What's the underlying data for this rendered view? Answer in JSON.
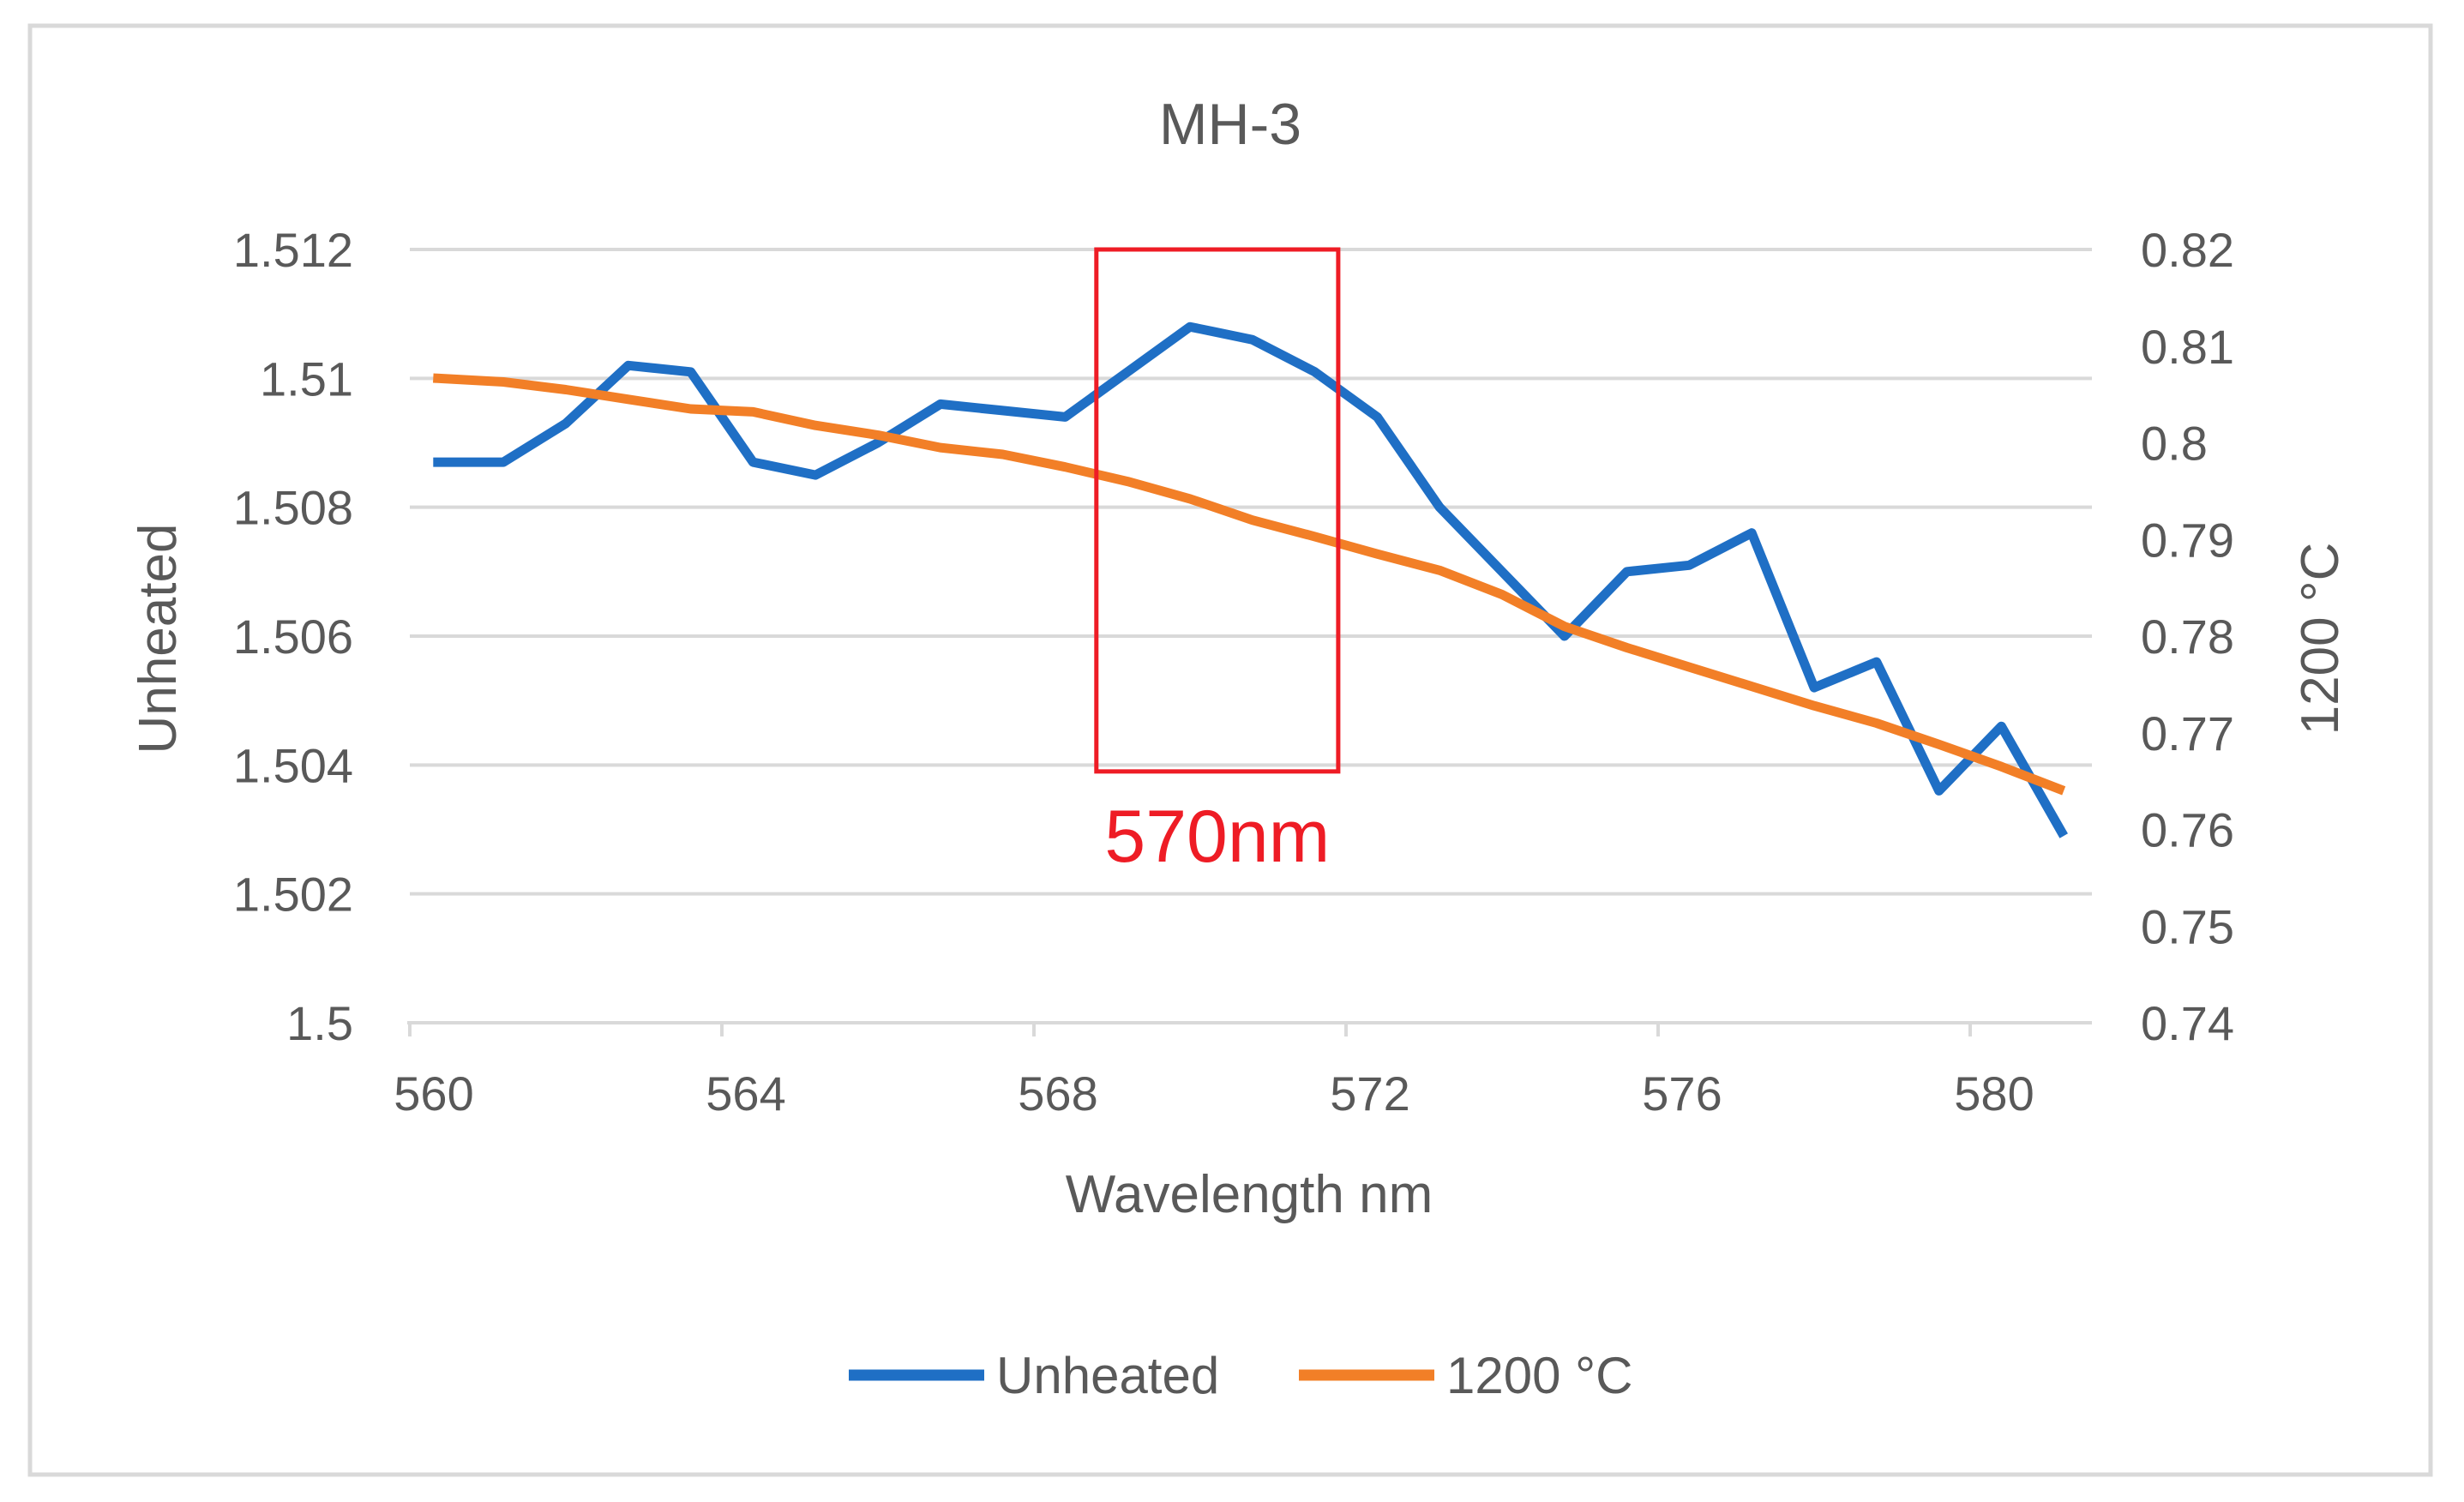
{
  "chart_data": {
    "type": "line",
    "title": "MH-3",
    "xlabel": "Wavelength nm",
    "ylabel_left": "Unheated",
    "ylabel_right": "1200 °C",
    "xlim": [
      560,
      581
    ],
    "xticks": [
      560,
      564,
      568,
      572,
      576,
      580
    ],
    "xtick_labels": [
      "560",
      "564",
      "568",
      "572",
      "576",
      "580"
    ],
    "ylim_left": [
      1.5,
      1.512
    ],
    "yticks_left": [
      1.5,
      1.502,
      1.504,
      1.506,
      1.508,
      1.51,
      1.512
    ],
    "ytick_labels_left": [
      "1.5",
      "1.502",
      "1.504",
      "1.506",
      "1.508",
      "1.51",
      "1.512"
    ],
    "ylim_right": [
      0.74,
      0.82
    ],
    "yticks_right": [
      0.74,
      0.75,
      0.76,
      0.77,
      0.78,
      0.79,
      0.8,
      0.81,
      0.82
    ],
    "ytick_labels_right": [
      "0.74",
      "0.75",
      "0.76",
      "0.77",
      "0.78",
      "0.79",
      "0.8",
      "0.81",
      "0.82"
    ],
    "grid": true,
    "legend_position": "bottom",
    "series": [
      {
        "name": "Unheated",
        "axis": "left",
        "color": "#1f6fc5",
        "x": [
          560.3,
          561.2,
          562.0,
          562.8,
          563.6,
          564.4,
          565.2,
          566.0,
          566.8,
          567.6,
          568.4,
          569.2,
          570.0,
          570.8,
          571.6,
          572.4,
          573.2,
          574.0,
          574.8,
          575.6,
          576.4,
          577.2,
          578.0,
          578.8,
          579.6,
          580.4,
          581.2
        ],
        "values": [
          1.5087,
          1.5087,
          1.5093,
          1.5102,
          1.5101,
          1.5087,
          1.5085,
          1.509,
          1.5096,
          1.5095,
          1.5094,
          1.5101,
          1.5108,
          1.5106,
          1.5101,
          1.5094,
          1.508,
          1.507,
          1.506,
          1.507,
          1.5071,
          1.5076,
          1.5052,
          1.5056,
          1.5036,
          1.5046,
          1.5029
        ]
      },
      {
        "name": "1200 °C",
        "axis": "right",
        "color": "#f27f27",
        "x": [
          560.3,
          561.2,
          562.0,
          562.8,
          563.6,
          564.4,
          565.2,
          566.0,
          566.8,
          567.6,
          568.4,
          569.2,
          570.0,
          570.8,
          571.6,
          572.4,
          573.2,
          574.0,
          574.8,
          575.6,
          576.4,
          577.2,
          578.0,
          578.8,
          579.6,
          580.4,
          581.2
        ],
        "values": [
          0.8067,
          0.8063,
          0.8055,
          0.8045,
          0.8035,
          0.8032,
          0.8018,
          0.8008,
          0.7995,
          0.7988,
          0.7975,
          0.796,
          0.7942,
          0.792,
          0.7903,
          0.7885,
          0.7868,
          0.7843,
          0.781,
          0.7788,
          0.7768,
          0.7748,
          0.7728,
          0.771,
          0.7688,
          0.7665,
          0.764
        ]
      }
    ],
    "annotation": {
      "label": "570nm",
      "color": "#ee1c25",
      "x_range": [
        568.8,
        571.9
      ],
      "y_range_left": [
        1.5039,
        1.512
      ]
    }
  }
}
